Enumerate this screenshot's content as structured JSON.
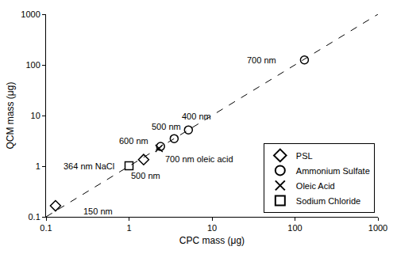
{
  "chart_data": {
    "type": "scatter",
    "x_label": "CPC mass (μg)",
    "y_label": "QCM mass (μg)",
    "log": true,
    "grid": false,
    "legend": "bottom right",
    "xlim": [
      0.1,
      1000
    ],
    "ylim": [
      0.1,
      1000
    ],
    "xticks": [
      0.1,
      1,
      10,
      100,
      1000
    ],
    "yticks": [
      0.1,
      1,
      10,
      100,
      1000
    ],
    "series": [
      {
        "type": "line",
        "line_style": "dashed",
        "color": "#000000",
        "x": [
          0.1,
          1000
        ],
        "values": [
          0.1,
          1000
        ]
      },
      {
        "name": "PSL",
        "marker": "diamond",
        "color": "#000000",
        "x": [
          0.13,
          1.5
        ],
        "values": [
          0.165,
          1.35
        ]
      },
      {
        "name": "Ammonium Sulfate",
        "marker": "circle",
        "color": "#000000",
        "x": [
          2.4,
          3.5,
          5.2,
          130
        ],
        "values": [
          2.45,
          3.5,
          5.2,
          125
        ]
      },
      {
        "name": "Oleic Acid",
        "marker": "x",
        "color": "#000000",
        "x": [
          2.3
        ],
        "values": [
          2.25
        ]
      },
      {
        "name": "Sodium Chloride",
        "marker": "square",
        "color": "#000000",
        "x": [
          1.0
        ],
        "values": [
          1.02
        ]
      }
    ],
    "annotations": [
      {
        "text": "700 nm",
        "x": 40,
        "y": 125
      },
      {
        "text": "400 nm",
        "x": 6.5,
        "y": 9.5
      },
      {
        "text": "500 nm",
        "x": 2.8,
        "y": 6.0
      },
      {
        "text": "600 nm",
        "x": 1.15,
        "y": 3.2
      },
      {
        "text": "364 nm NaCl",
        "x": 0.33,
        "y": 1.0
      },
      {
        "text": "500 nm",
        "x": 1.6,
        "y": 0.65
      },
      {
        "text": "700 nm oleic acid",
        "x": 7,
        "y": 1.4
      },
      {
        "text": "150 nm",
        "x": 0.42,
        "y": 0.13
      }
    ]
  }
}
